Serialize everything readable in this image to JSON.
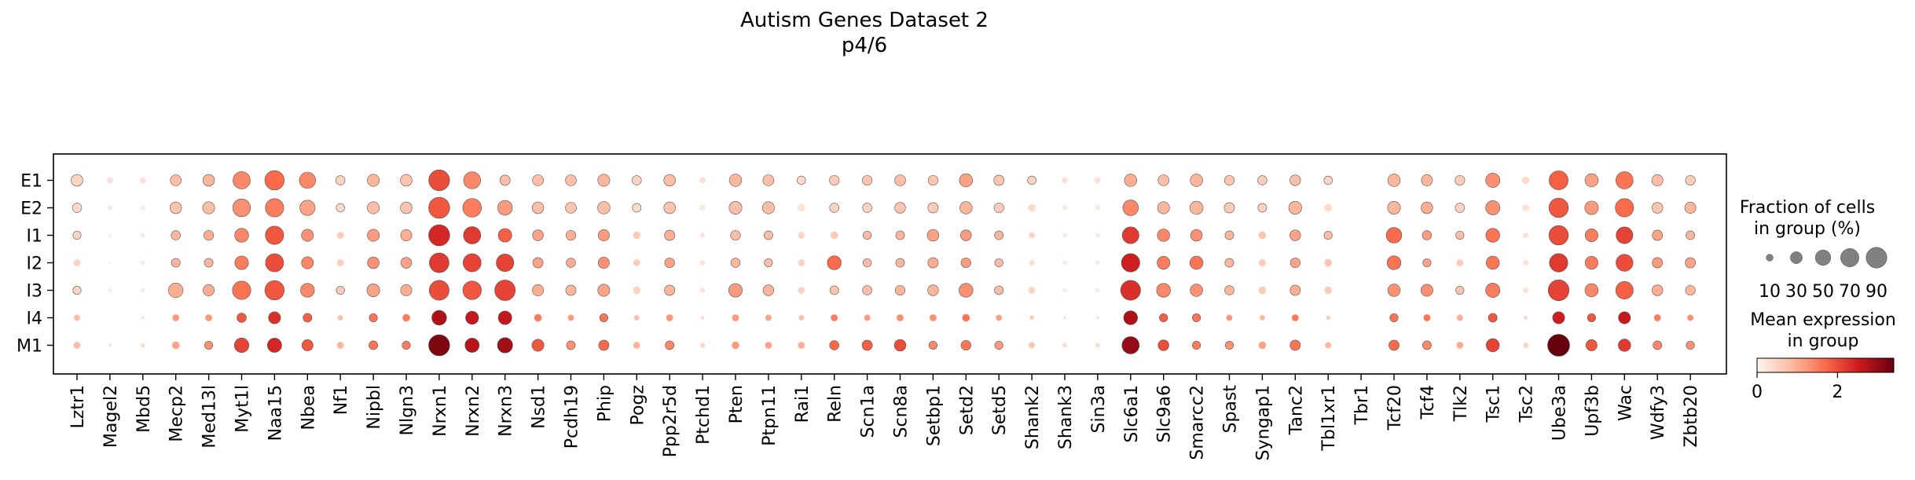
{
  "chart_data": {
    "type": "dotplot",
    "title": "Autism Genes Dataset 2",
    "subtitle": "p4/6",
    "xlabel": "",
    "ylabel": "",
    "genes": [
      "Lztr1",
      "Magel2",
      "Mbd5",
      "Mecp2",
      "Med13l",
      "Myt1l",
      "Naa15",
      "Nbea",
      "Nf1",
      "Nipbl",
      "Nlgn3",
      "Nrxn1",
      "Nrxn2",
      "Nrxn3",
      "Nsd1",
      "Pcdh19",
      "Phip",
      "Pogz",
      "Ppp2r5d",
      "Ptchd1",
      "Pten",
      "Ptpn11",
      "Rai1",
      "Reln",
      "Scn1a",
      "Scn8a",
      "Setbp1",
      "Setd2",
      "Setd5",
      "Shank2",
      "Shank3",
      "Sin3a",
      "Slc6a1",
      "Slc9a6",
      "Smarcc2",
      "Spast",
      "Syngap1",
      "Tanc2",
      "Tbl1xr1",
      "Tbr1",
      "Tcf20",
      "Tcf4",
      "Tlk2",
      "Tsc1",
      "Tsc2",
      "Ube3a",
      "Upf3b",
      "Wac",
      "Wdfy3",
      "Zbtb20"
    ],
    "groups": [
      "E1",
      "E2",
      "I1",
      "I2",
      "I3",
      "I4",
      "M1"
    ],
    "fraction_pct": [
      [
        28,
        8,
        8,
        25,
        28,
        62,
        78,
        55,
        18,
        30,
        28,
        90,
        60,
        22,
        25,
        25,
        30,
        18,
        28,
        8,
        32,
        25,
        15,
        20,
        20,
        25,
        20,
        36,
        22,
        15,
        8,
        8,
        32,
        25,
        32,
        20,
        18,
        24,
        15,
        0,
        32,
        26,
        20,
        42,
        12,
        75,
        36,
        62,
        26,
        20
      ],
      [
        18,
        5,
        5,
        28,
        30,
        65,
        70,
        48,
        15,
        30,
        28,
        92,
        72,
        45,
        28,
        25,
        32,
        16,
        28,
        8,
        34,
        30,
        12,
        18,
        18,
        24,
        22,
        32,
        20,
        12,
        6,
        6,
        50,
        30,
        36,
        22,
        16,
        35,
        12,
        0,
        34,
        28,
        18,
        42,
        10,
        78,
        38,
        70,
        24,
        26
      ],
      [
        14,
        2,
        4,
        18,
        20,
        40,
        70,
        30,
        10,
        30,
        26,
        92,
        62,
        38,
        24,
        20,
        26,
        12,
        22,
        5,
        20,
        16,
        10,
        12,
        14,
        16,
        28,
        24,
        16,
        8,
        4,
        4,
        58,
        32,
        28,
        16,
        12,
        24,
        14,
        0,
        50,
        18,
        14,
        40,
        6,
        78,
        34,
        58,
        22,
        16
      ],
      [
        10,
        1,
        4,
        16,
        16,
        38,
        68,
        30,
        10,
        28,
        24,
        80,
        68,
        64,
        22,
        18,
        26,
        10,
        20,
        5,
        18,
        14,
        10,
        40,
        14,
        16,
        22,
        20,
        14,
        6,
        4,
        4,
        70,
        34,
        36,
        16,
        10,
        20,
        12,
        0,
        40,
        14,
        10,
        36,
        6,
        70,
        34,
        60,
        22,
        22
      ],
      [
        14,
        3,
        4,
        44,
        26,
        70,
        78,
        40,
        14,
        34,
        26,
        82,
        72,
        88,
        26,
        22,
        30,
        12,
        22,
        5,
        38,
        24,
        10,
        16,
        18,
        20,
        24,
        40,
        16,
        10,
        4,
        4,
        82,
        40,
        32,
        18,
        12,
        22,
        12,
        0,
        32,
        30,
        14,
        42,
        6,
        90,
        36,
        64,
        24,
        20
      ],
      [
        8,
        0,
        2,
        10,
        10,
        18,
        30,
        16,
        6,
        14,
        12,
        45,
        35,
        38,
        12,
        8,
        14,
        6,
        10,
        3,
        10,
        8,
        6,
        10,
        8,
        10,
        10,
        12,
        8,
        4,
        2,
        2,
        40,
        14,
        14,
        8,
        6,
        10,
        4,
        0,
        14,
        10,
        8,
        16,
        4,
        30,
        14,
        30,
        10,
        8
      ],
      [
        10,
        2,
        4,
        12,
        14,
        44,
        42,
        26,
        10,
        16,
        14,
        92,
        42,
        48,
        30,
        16,
        22,
        10,
        16,
        5,
        12,
        10,
        10,
        18,
        22,
        28,
        14,
        20,
        14,
        8,
        4,
        4,
        62,
        24,
        14,
        14,
        12,
        22,
        8,
        0,
        22,
        16,
        10,
        36,
        6,
        100,
        26,
        32,
        16,
        14
      ]
    ],
    "mean_expression": [
      [
        0.5,
        0.3,
        0.3,
        0.8,
        0.9,
        1.4,
        1.7,
        1.4,
        0.5,
        0.9,
        0.7,
        2.0,
        1.4,
        0.8,
        0.8,
        0.8,
        0.9,
        0.5,
        0.8,
        0.3,
        0.9,
        0.8,
        0.4,
        0.6,
        0.7,
        0.8,
        0.7,
        1.1,
        0.7,
        0.5,
        0.3,
        0.3,
        1.0,
        0.8,
        0.9,
        0.7,
        0.6,
        0.8,
        0.5,
        0,
        0.9,
        0.9,
        0.6,
        1.3,
        0.4,
        1.8,
        1.1,
        1.6,
        0.8,
        0.6
      ],
      [
        0.4,
        0.2,
        0.2,
        0.7,
        0.8,
        1.3,
        1.5,
        1.1,
        0.4,
        0.8,
        0.7,
        1.9,
        1.5,
        1.2,
        0.8,
        0.7,
        0.8,
        0.4,
        0.7,
        0.2,
        0.8,
        0.8,
        0.3,
        0.5,
        0.5,
        0.7,
        0.6,
        0.9,
        0.6,
        0.4,
        0.2,
        0.2,
        1.4,
        0.9,
        0.9,
        0.6,
        0.5,
        0.9,
        0.4,
        0,
        0.9,
        1.0,
        0.5,
        1.3,
        0.3,
        1.9,
        1.2,
        1.7,
        0.7,
        0.9
      ],
      [
        0.5,
        0.1,
        0.2,
        0.9,
        1.0,
        1.4,
        1.9,
        1.3,
        0.6,
        1.2,
        1.0,
        2.4,
        2.2,
        1.8,
        1.1,
        1.0,
        1.2,
        0.6,
        1.0,
        0.3,
        0.8,
        0.8,
        0.5,
        0.6,
        0.8,
        0.9,
        1.1,
        1.2,
        0.9,
        0.5,
        0.2,
        0.2,
        2.2,
        1.4,
        1.3,
        0.9,
        0.7,
        1.1,
        0.8,
        0,
        1.7,
        1.2,
        0.8,
        1.6,
        0.3,
        2.0,
        1.5,
        2.1,
        1.1,
        0.9
      ],
      [
        0.5,
        0.1,
        0.2,
        0.9,
        0.9,
        1.5,
        2.0,
        1.4,
        0.6,
        1.3,
        1.1,
        2.2,
        2.1,
        2.1,
        1.1,
        1.0,
        1.3,
        0.6,
        1.1,
        0.3,
        0.9,
        0.8,
        0.5,
        1.7,
        0.8,
        0.9,
        1.0,
        1.2,
        0.8,
        0.4,
        0.2,
        0.2,
        2.5,
        1.5,
        1.6,
        0.9,
        0.6,
        1.1,
        0.7,
        0,
        1.6,
        1.1,
        0.6,
        1.6,
        0.3,
        2.2,
        1.5,
        2.0,
        1.2,
        1.1
      ],
      [
        0.5,
        0.2,
        0.2,
        1.0,
        1.0,
        1.6,
        1.9,
        1.4,
        0.6,
        1.1,
        1.0,
        2.0,
        1.9,
        2.1,
        1.0,
        0.9,
        1.1,
        0.5,
        0.9,
        0.3,
        1.2,
        0.9,
        0.5,
        0.7,
        0.8,
        0.9,
        0.9,
        1.3,
        0.8,
        0.5,
        0.2,
        0.2,
        2.3,
        1.4,
        1.3,
        0.9,
        0.6,
        1.0,
        0.6,
        0,
        1.3,
        1.3,
        0.7,
        1.5,
        0.3,
        2.1,
        1.4,
        1.8,
        1.0,
        0.9
      ],
      [
        0.8,
        0,
        0.3,
        1.2,
        1.2,
        1.9,
        2.3,
        1.8,
        0.8,
        1.6,
        1.5,
        2.8,
        2.6,
        2.6,
        1.5,
        1.2,
        1.6,
        0.8,
        1.2,
        0.4,
        1.2,
        1.1,
        0.8,
        1.5,
        1.2,
        1.3,
        1.3,
        1.6,
        1.1,
        0.6,
        0.3,
        0.3,
        2.8,
        1.8,
        1.6,
        1.2,
        0.9,
        1.5,
        0.6,
        0,
        1.6,
        1.6,
        1.0,
        1.9,
        0.4,
        2.5,
        1.9,
        2.6,
        1.5,
        1.3
      ],
      [
        0.8,
        0.3,
        0.4,
        1.1,
        1.3,
        2.1,
        2.4,
        1.9,
        0.9,
        1.6,
        1.5,
        3.2,
        2.7,
        2.9,
        1.9,
        1.3,
        1.7,
        0.9,
        1.4,
        0.5,
        1.2,
        1.1,
        1.0,
        1.7,
        1.8,
        2.0,
        1.4,
        1.6,
        1.2,
        0.7,
        0.4,
        0.4,
        3.0,
        2.0,
        1.5,
        1.3,
        1.1,
        1.6,
        0.9,
        0,
        1.7,
        1.4,
        1.0,
        2.1,
        0.5,
        3.4,
        1.9,
        2.2,
        1.4,
        1.3
      ]
    ],
    "size_legend": {
      "title_line1": "Fraction of cells",
      "title_line2": "in group (%)",
      "values": [
        10,
        30,
        50,
        70,
        90
      ]
    },
    "color_legend": {
      "title_line1": "Mean expression",
      "title_line2": "in group",
      "ticks": [
        0,
        2
      ],
      "vmin": 0,
      "vmax": 3.4
    },
    "colormap": "Reds",
    "grid": false
  }
}
